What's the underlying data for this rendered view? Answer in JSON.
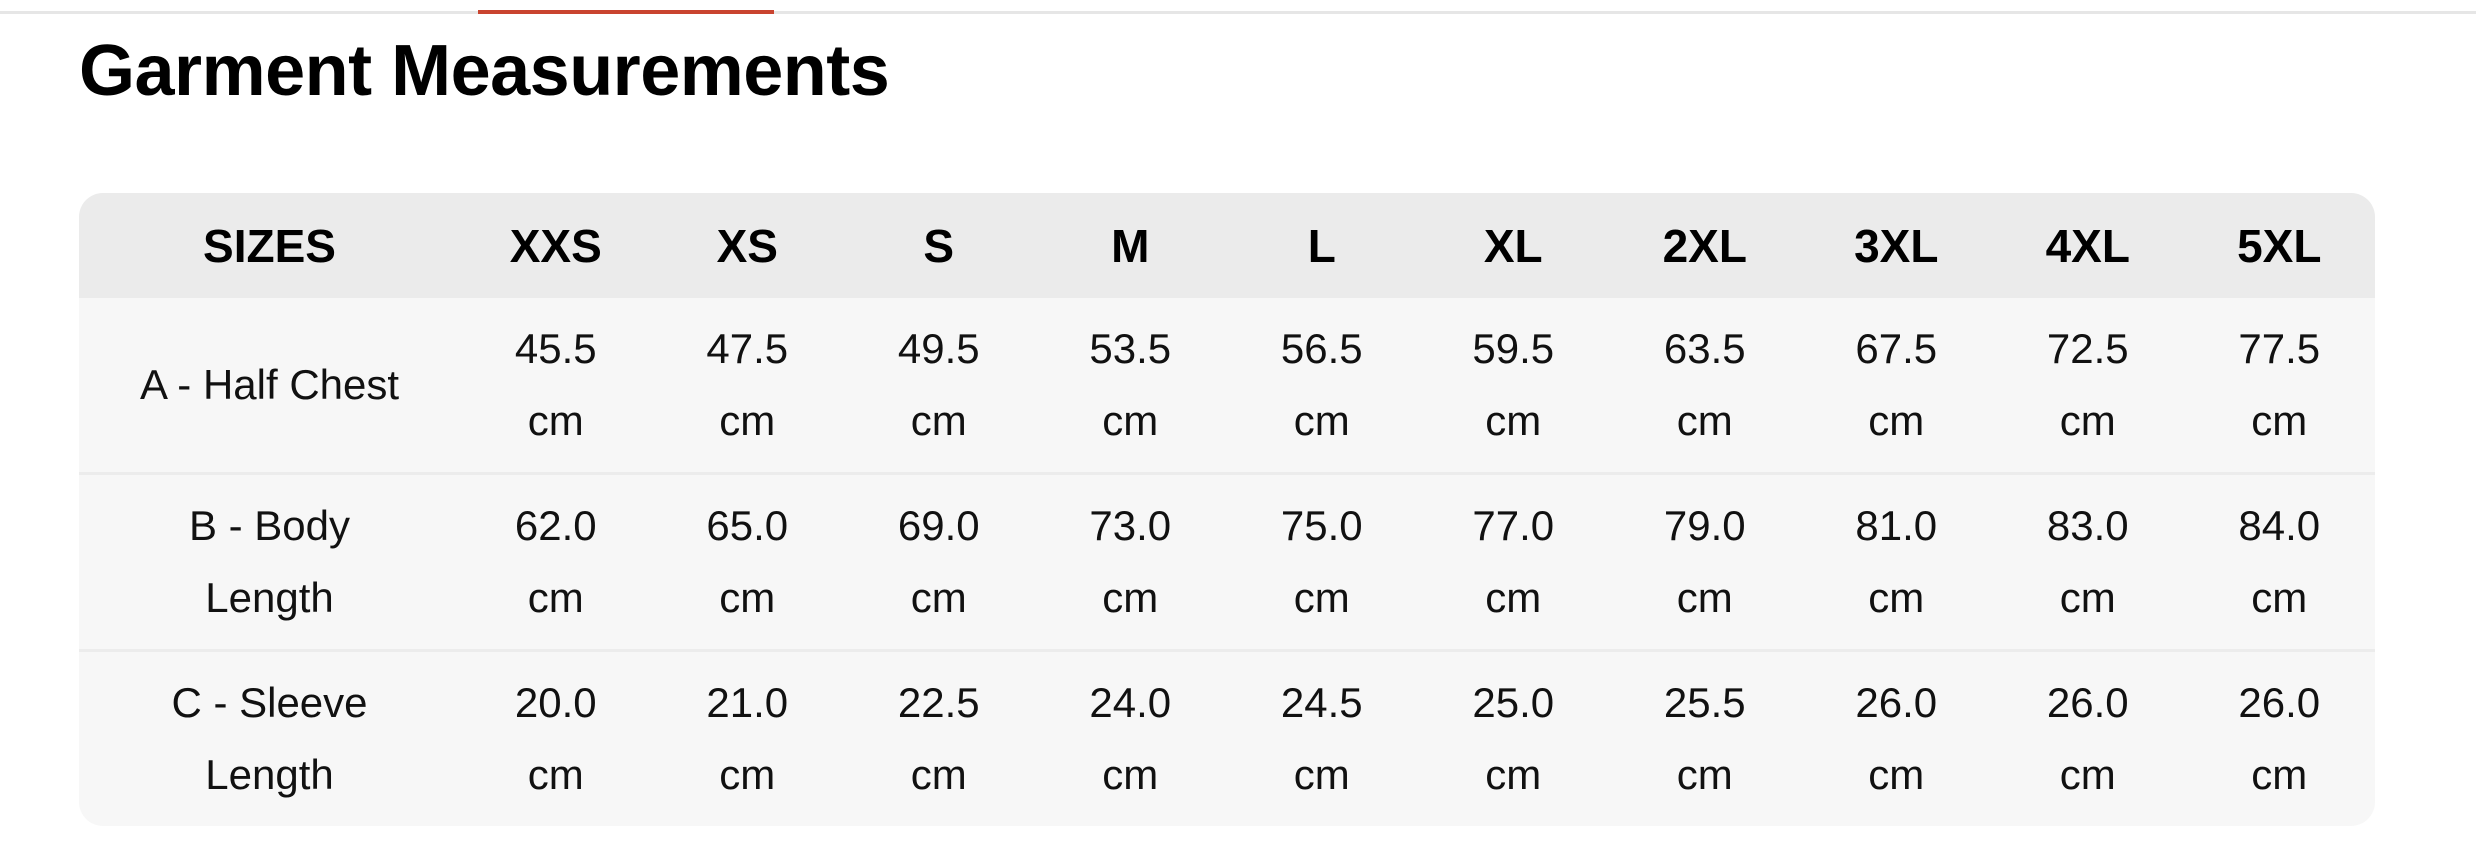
{
  "header": {
    "title": "Garment Measurements",
    "accent_color": "#c9442f"
  },
  "table": {
    "columns": [
      "SIZES",
      "XXS",
      "XS",
      "S",
      "M",
      "L",
      "XL",
      "2XL",
      "3XL",
      "4XL",
      "5XL"
    ],
    "rows": [
      {
        "label": "A - Half Chest",
        "values": [
          "45.5",
          "47.5",
          "49.5",
          "53.5",
          "56.5",
          "59.5",
          "63.5",
          "67.5",
          "72.5",
          "77.5"
        ]
      },
      {
        "label": "B - Body Length",
        "values": [
          "62.0",
          "65.0",
          "69.0",
          "73.0",
          "75.0",
          "77.0",
          "79.0",
          "81.0",
          "83.0",
          "84.0"
        ]
      },
      {
        "label": "C - Sleeve Length",
        "values": [
          "20.0",
          "21.0",
          "22.5",
          "24.0",
          "24.5",
          "25.0",
          "25.5",
          "26.0",
          "26.0",
          "26.0"
        ]
      }
    ],
    "unit": "cm"
  }
}
